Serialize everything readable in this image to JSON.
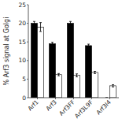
{
  "chart_data": {
    "type": "bar",
    "y_label": "% Arf3 signal at Golgi",
    "categories": [
      "Arf1",
      "Arf3",
      "Arf3FF",
      "Arf3L9F",
      "Arf3I4"
    ],
    "series": [
      {
        "color": "#000000",
        "values": [
          20.0,
          14.5,
          20.0,
          14.0,
          0.0
        ],
        "errors": [
          0.5,
          0.4,
          0.5,
          0.4,
          0.0
        ]
      },
      {
        "color": "#ffffff",
        "values": [
          19.0,
          6.2,
          6.0,
          6.8,
          3.2
        ],
        "errors": [
          1.2,
          0.3,
          0.4,
          0.3,
          0.3
        ]
      }
    ],
    "ylim": [
      0,
      25
    ],
    "yticks": [
      0,
      5,
      10,
      15,
      20,
      25
    ],
    "grid": false
  }
}
